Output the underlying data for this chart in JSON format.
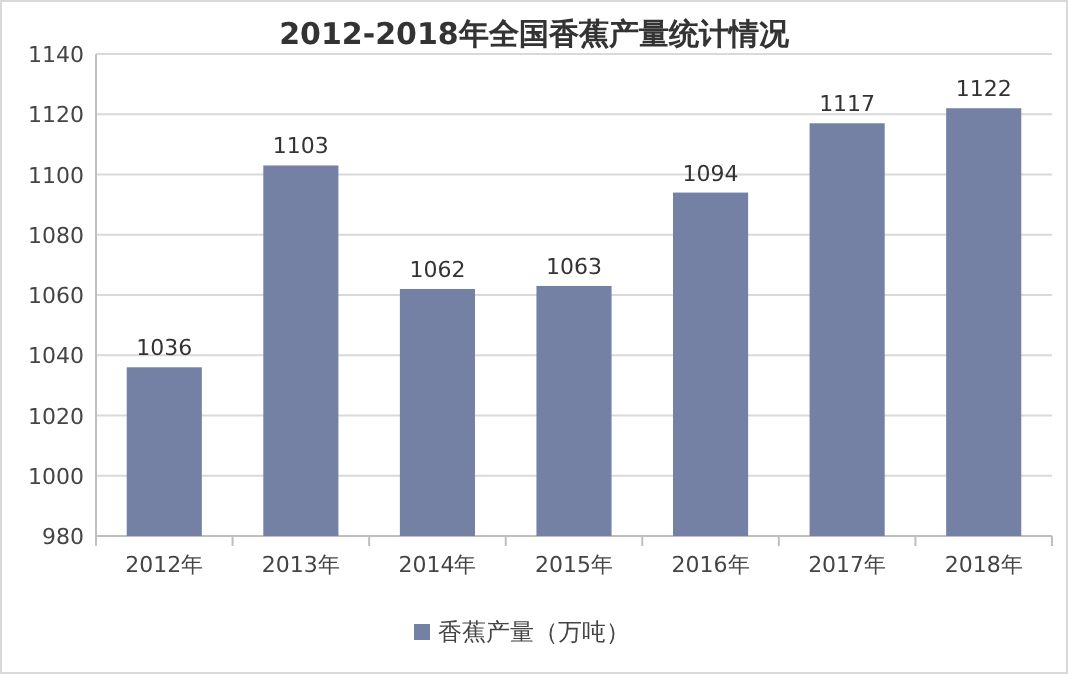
{
  "chart_data": {
    "type": "bar",
    "title": "2012-2018年全国香蕉产量统计情况",
    "categories": [
      "2012年",
      "2013年",
      "2014年",
      "2015年",
      "2016年",
      "2017年",
      "2018年"
    ],
    "series": [
      {
        "name": "香蕉产量（万吨）",
        "color": "#7480a4",
        "values": [
          1036,
          1103,
          1062,
          1063,
          1094,
          1117,
          1122
        ]
      }
    ],
    "ylim": [
      980,
      1140
    ],
    "yticks": [
      980,
      1000,
      1020,
      1040,
      1060,
      1080,
      1100,
      1120,
      1140
    ],
    "grid": "y",
    "legend": "bottom",
    "data_labels": true
  }
}
